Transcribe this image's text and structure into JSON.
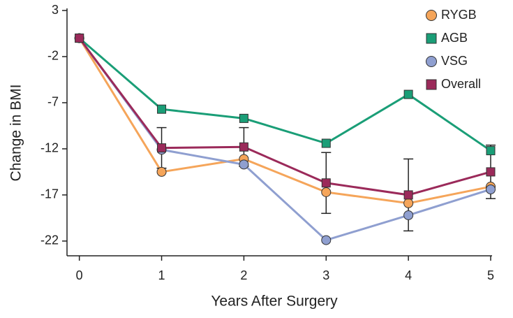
{
  "chart_data": {
    "type": "line",
    "x_label": "Years After Surgery",
    "y_label": "Change in BMI",
    "x": [
      0,
      1,
      2,
      3,
      4,
      5
    ],
    "series": [
      {
        "name": "RYGB",
        "color": "#f5a55a",
        "marker": "circle",
        "values": [
          0,
          -14.5,
          -13.1,
          -16.7,
          -17.9,
          -16.1
        ]
      },
      {
        "name": "AGB",
        "color": "#1a9e77",
        "marker": "square",
        "values": [
          0,
          -7.7,
          -8.7,
          -11.4,
          -6.1,
          -12.2
        ]
      },
      {
        "name": "VSG",
        "color": "#8f9fd0",
        "marker": "circle",
        "values": [
          0,
          -12.1,
          -13.7,
          -21.9,
          -19.2,
          -16.4
        ]
      },
      {
        "name": "Overall",
        "color": "#9b2a5a",
        "marker": "square",
        "values": [
          0,
          -11.9,
          -11.8,
          -15.7,
          -17.0,
          -14.5
        ],
        "errors": [
          null,
          2.2,
          2.1,
          3.3,
          3.9,
          2.9
        ]
      }
    ],
    "xlim": [
      -0.15,
      5
    ],
    "ylim": [
      -23.6,
      3
    ],
    "xticks": [
      0,
      1,
      2,
      3,
      4,
      5
    ],
    "yticks": [
      3,
      -2,
      -7,
      -12,
      -17,
      -22
    ],
    "legend": "top-right"
  }
}
